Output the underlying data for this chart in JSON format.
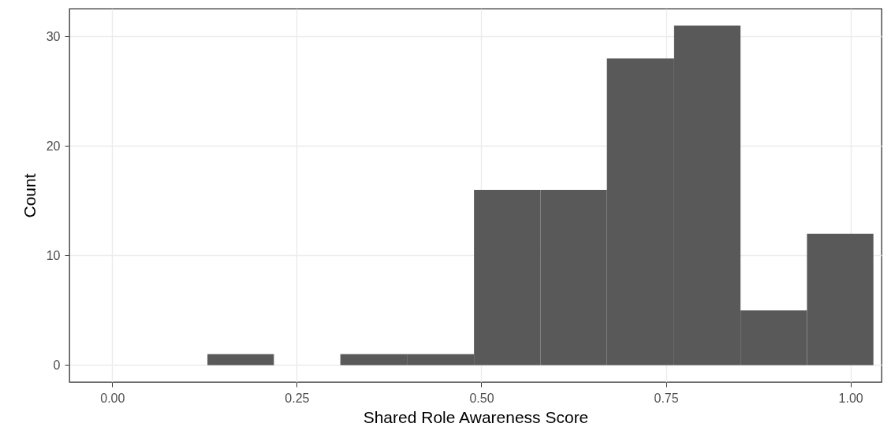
{
  "chart_data": {
    "type": "histogram",
    "xlabel": "Shared Role Awareness Score",
    "ylabel": "Count",
    "bins": [
      0.129,
      0.219,
      0.309,
      0.4,
      0.49,
      0.58,
      0.67,
      0.761,
      0.851,
      0.941,
      1.031
    ],
    "values": [
      1,
      0,
      1,
      1,
      16,
      16,
      28,
      31,
      5,
      12
    ],
    "color": "#595959",
    "xlim": [
      -0.058,
      1.042
    ],
    "ylim": [
      -1.55,
      32.55
    ],
    "xticks": [
      {
        "value": 0,
        "label": "0.00"
      },
      {
        "value": 0.25,
        "label": "0.25"
      },
      {
        "value": 0.5,
        "label": "0.50"
      },
      {
        "value": 0.75,
        "label": "0.75"
      },
      {
        "value": 1,
        "label": "1.00"
      }
    ],
    "yticks": [
      0,
      10,
      20,
      30
    ],
    "grid": true
  }
}
